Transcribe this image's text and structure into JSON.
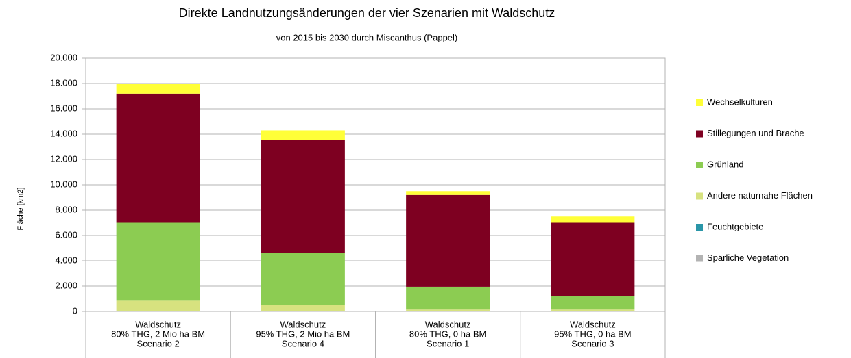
{
  "chart_data": {
    "type": "stacked_bar",
    "title": "Direkte Landnutzungsänderungen der vier Szenarien mit Waldschutz",
    "subtitle": "von 2015 bis 2030 durch Miscanthus (Pappel)",
    "y_label": "Fläche [km2]",
    "categories": [
      [
        "Waldschutz",
        "80% THG, 2 Mio ha BM",
        "Scenario 2"
      ],
      [
        "Waldschutz",
        "95% THG, 2 Mio ha BM",
        "Scenario 4"
      ],
      [
        "Waldschutz",
        "80% THG, 0 ha BM",
        "Scenario 1"
      ],
      [
        "Waldschutz",
        "95% THG, 0 ha BM",
        "Scenario 3"
      ]
    ],
    "series": [
      {
        "name": "Spärliche Vegetation",
        "color": "#b3b3b3",
        "values": [
          0,
          0,
          0,
          0
        ]
      },
      {
        "name": "Feuchtgebiete",
        "color": "#2a96a8",
        "values": [
          0,
          0,
          0,
          0
        ]
      },
      {
        "name": "Andere naturnahe Flächen",
        "color": "#d7e27f",
        "values": [
          900,
          500,
          150,
          150
        ]
      },
      {
        "name": "Grünland",
        "color": "#8ccc52",
        "values": [
          6100,
          4100,
          1800,
          1050
        ]
      },
      {
        "name": "Stillegungen und Brache",
        "color": "#7e0021",
        "values": [
          10200,
          8950,
          7250,
          5800
        ]
      },
      {
        "name": "Wechselkulturen",
        "color": "#ffff38",
        "values": [
          800,
          750,
          300,
          500
        ]
      }
    ],
    "ylim": [
      0,
      20000
    ],
    "yticks": [
      0,
      {
        "value": 2000,
        "label": "2.000"
      },
      {
        "value": 4000,
        "label": "4.000"
      },
      {
        "value": 6000,
        "label": "6.000"
      },
      {
        "value": 8000,
        "label": "8.000"
      },
      {
        "value": 10000,
        "label": "10.000"
      },
      {
        "value": 12000,
        "label": "12.000"
      },
      {
        "value": 14000,
        "label": "14.000"
      },
      {
        "value": 16000,
        "label": "16.000"
      },
      {
        "value": 18000,
        "label": "18.000"
      },
      {
        "value": 20000,
        "label": "20.000"
      }
    ],
    "grid": true,
    "legend": "right"
  }
}
